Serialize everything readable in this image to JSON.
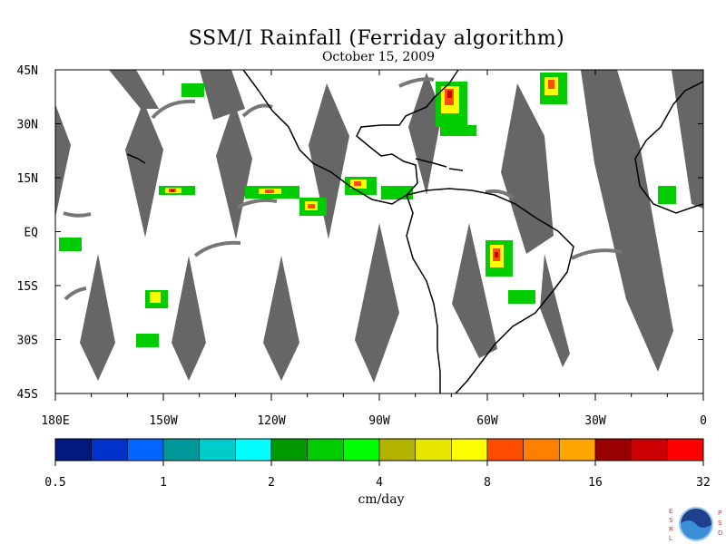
{
  "title": "SSM/I Rainfall (Ferriday algorithm)",
  "subtitle": "October 15, 2009",
  "map": {
    "lat_labels": [
      "45N",
      "30N",
      "15N",
      "EQ",
      "15S",
      "30S",
      "45S"
    ],
    "lon_labels": [
      "180E",
      "150W",
      "120W",
      "90W",
      "60W",
      "30W",
      "0"
    ],
    "missing_swath_color": "#666666",
    "coast_color": "#000000"
  },
  "colorbar": {
    "colors": [
      "#001a80",
      "#0033cc",
      "#0066ff",
      "#009999",
      "#00cccc",
      "#00ffff",
      "#009900",
      "#00cc00",
      "#00ff00",
      "#b3b300",
      "#e6e600",
      "#ffff00",
      "#ff4d00",
      "#ff8000",
      "#ffa600",
      "#990000",
      "#cc0000",
      "#ff0000"
    ],
    "labels": [
      "0.5",
      "1",
      "2",
      "4",
      "8",
      "16",
      "32"
    ],
    "units": "cm/day"
  },
  "logo": {
    "left_letters": "ESRL",
    "right_letters": "PSD",
    "name": "NOAA"
  }
}
